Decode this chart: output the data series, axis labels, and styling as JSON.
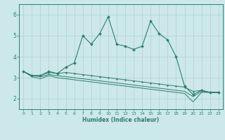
{
  "xlabel": "Humidex (Indice chaleur)",
  "x": [
    0,
    1,
    2,
    3,
    4,
    5,
    6,
    7,
    8,
    9,
    10,
    11,
    12,
    13,
    14,
    15,
    16,
    17,
    18,
    19,
    20,
    21,
    22,
    23
  ],
  "line1": [
    3.3,
    3.1,
    3.1,
    3.3,
    3.2,
    3.5,
    3.7,
    5.0,
    4.6,
    5.1,
    5.9,
    4.6,
    4.5,
    4.35,
    4.5,
    5.7,
    5.1,
    4.8,
    4.0,
    2.6,
    2.2,
    2.4,
    2.3,
    2.3
  ],
  "line2": [
    3.3,
    3.1,
    3.1,
    3.25,
    3.2,
    3.25,
    3.2,
    3.15,
    3.1,
    3.05,
    3.0,
    2.95,
    2.9,
    2.85,
    2.8,
    2.75,
    2.7,
    2.65,
    2.6,
    2.55,
    2.35,
    2.4,
    2.3,
    2.3
  ],
  "line3": [
    3.3,
    3.1,
    3.05,
    3.15,
    3.1,
    3.05,
    3.0,
    2.95,
    2.9,
    2.85,
    2.8,
    2.75,
    2.7,
    2.65,
    2.6,
    2.55,
    2.5,
    2.45,
    2.4,
    2.35,
    2.1,
    2.35,
    2.3,
    2.3
  ],
  "line4": [
    3.3,
    3.05,
    2.95,
    3.1,
    3.0,
    2.95,
    2.9,
    2.85,
    2.8,
    2.75,
    2.7,
    2.65,
    2.6,
    2.55,
    2.5,
    2.45,
    2.4,
    2.35,
    2.3,
    2.25,
    1.85,
    2.3,
    2.3,
    2.3
  ],
  "ylim": [
    1.5,
    6.5
  ],
  "yticks": [
    2,
    3,
    4,
    5,
    6
  ],
  "xtick_labels": [
    "0",
    "1",
    "2",
    "3",
    "4",
    "5",
    "6",
    "7",
    "8",
    "9",
    "10",
    "11",
    "12",
    "13",
    "14",
    "15",
    "16",
    "17",
    "18",
    "19",
    "20",
    "21",
    "22",
    "23"
  ],
  "line_color": "#2e7d6b",
  "bg_color": "#cce8ea",
  "grid_color": "#b0d0d3",
  "spine_color": "#2e7d6b"
}
